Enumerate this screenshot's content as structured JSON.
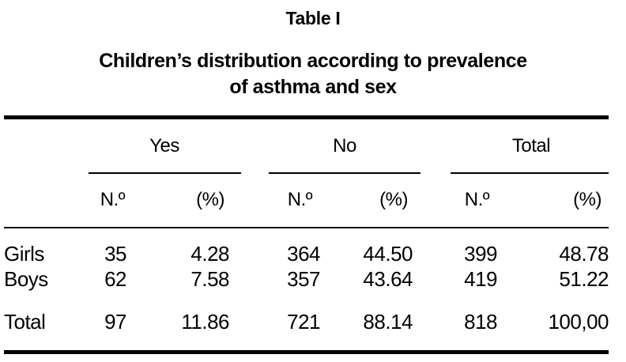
{
  "title": "Table I",
  "subtitle_line1": "Children’s distribution according to prevalence",
  "subtitle_line2": "of asthma and sex",
  "table": {
    "groups": [
      {
        "label": "Yes"
      },
      {
        "label": "No"
      },
      {
        "label": "Total"
      }
    ],
    "subheaders": {
      "count": "N.º",
      "percent": "(%)"
    },
    "rows": [
      {
        "label": "Girls",
        "values": [
          "35",
          "4.28",
          "364",
          "44.50",
          "399",
          "48.78"
        ]
      },
      {
        "label": "Boys",
        "values": [
          "62",
          "7.58",
          "357",
          "43.64",
          "419",
          "51.22"
        ]
      }
    ],
    "total_row": {
      "label": "Total",
      "values": [
        "97",
        "11.86",
        "721",
        "88.14",
        "818",
        "100,00"
      ]
    }
  },
  "colors": {
    "text": "#000000",
    "background": "#ffffff",
    "rule": "#000000"
  }
}
